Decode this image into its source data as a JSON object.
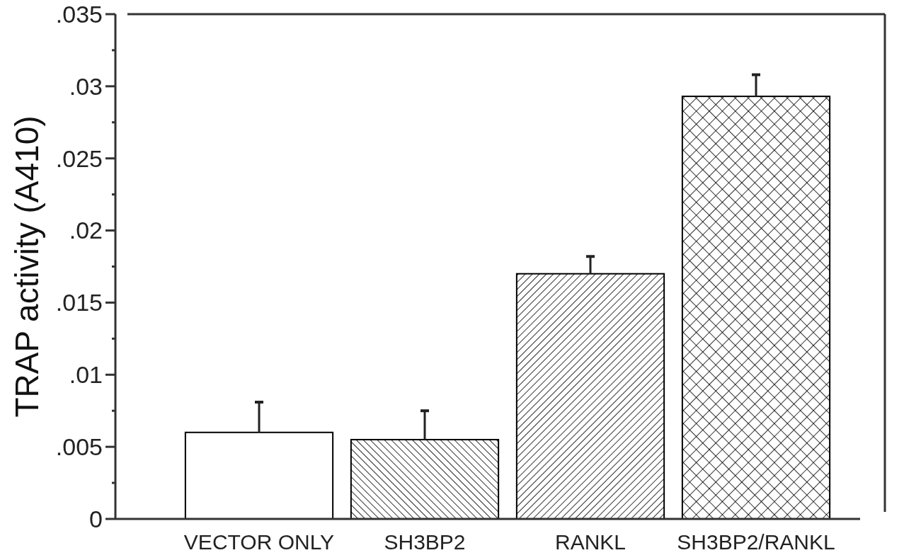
{
  "chart_data": {
    "type": "bar",
    "ylabel": "TRAP activity (A410)",
    "categories": [
      "VECTOR ONLY",
      "SH3BP2",
      "RANKL",
      "SH3BP2/RANKL"
    ],
    "values": [
      0.006,
      0.0055,
      0.017,
      0.0293
    ],
    "errors": [
      [
        0.006,
        0.0081
      ],
      [
        0.0055,
        0.0075
      ],
      [
        0.017,
        0.0182
      ],
      [
        0.0293,
        0.0308
      ]
    ],
    "colors": [
      "#ffffff",
      "#ffffff",
      "#ffffff",
      "#ffffff"
    ],
    "ylim": [
      0,
      0.035
    ],
    "yticks": [
      {
        "value": 0,
        "label": "0"
      },
      {
        "value": 0.0025,
        "label": null
      },
      {
        "value": 0.005,
        "label": ".005"
      },
      {
        "value": 0.0075,
        "label": null
      },
      {
        "value": 0.01,
        "label": ".01"
      },
      {
        "value": 0.0125,
        "label": null
      },
      {
        "value": 0.015,
        "label": ".015"
      },
      {
        "value": 0.0175,
        "label": null
      },
      {
        "value": 0.02,
        "label": ".02"
      },
      {
        "value": 0.0225,
        "label": null
      },
      {
        "value": 0.025,
        "label": ".025"
      },
      {
        "value": 0.0275,
        "label": null
      },
      {
        "value": 0.03,
        "label": ".03"
      },
      {
        "value": 0.0325,
        "label": null
      },
      {
        "value": 0.035,
        "label": ".035"
      }
    ],
    "grid": false
  }
}
